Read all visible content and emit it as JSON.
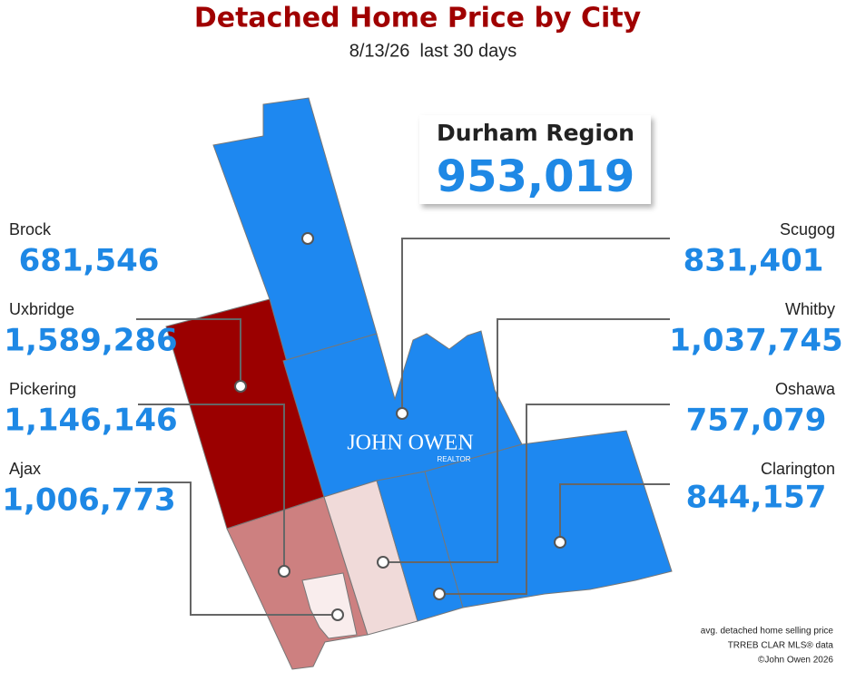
{
  "header": {
    "title": "Detached Home Price by City",
    "subtitle": "8/13/26  last 30 days"
  },
  "summary": {
    "name": "Durham Region",
    "value": "953,019"
  },
  "cities": [
    {
      "name": "Brock",
      "value": "681,546",
      "color": "#1e88f0"
    },
    {
      "name": "Uxbridge",
      "value": "1,589,286",
      "color": "#9b0000"
    },
    {
      "name": "Pickering",
      "value": "1,146,146",
      "color": "#cd8080"
    },
    {
      "name": "Ajax",
      "value": "1,006,773",
      "color": "#f9eded"
    },
    {
      "name": "Scugog",
      "value": "831,401",
      "color": "#1e88f0"
    },
    {
      "name": "Whitby",
      "value": "1,037,745",
      "color": "#f0dad9"
    },
    {
      "name": "Oshawa",
      "value": "757,079",
      "color": "#1e88f0"
    },
    {
      "name": "Clarington",
      "value": "844,157",
      "color": "#1e88f0"
    }
  ],
  "logo": {
    "name": "JOHN OWEN",
    "tag": "REALTOR"
  },
  "footnote": [
    "avg. detached home selling price",
    "TRREB CLAR MLS® data",
    "©John Owen 2026"
  ]
}
